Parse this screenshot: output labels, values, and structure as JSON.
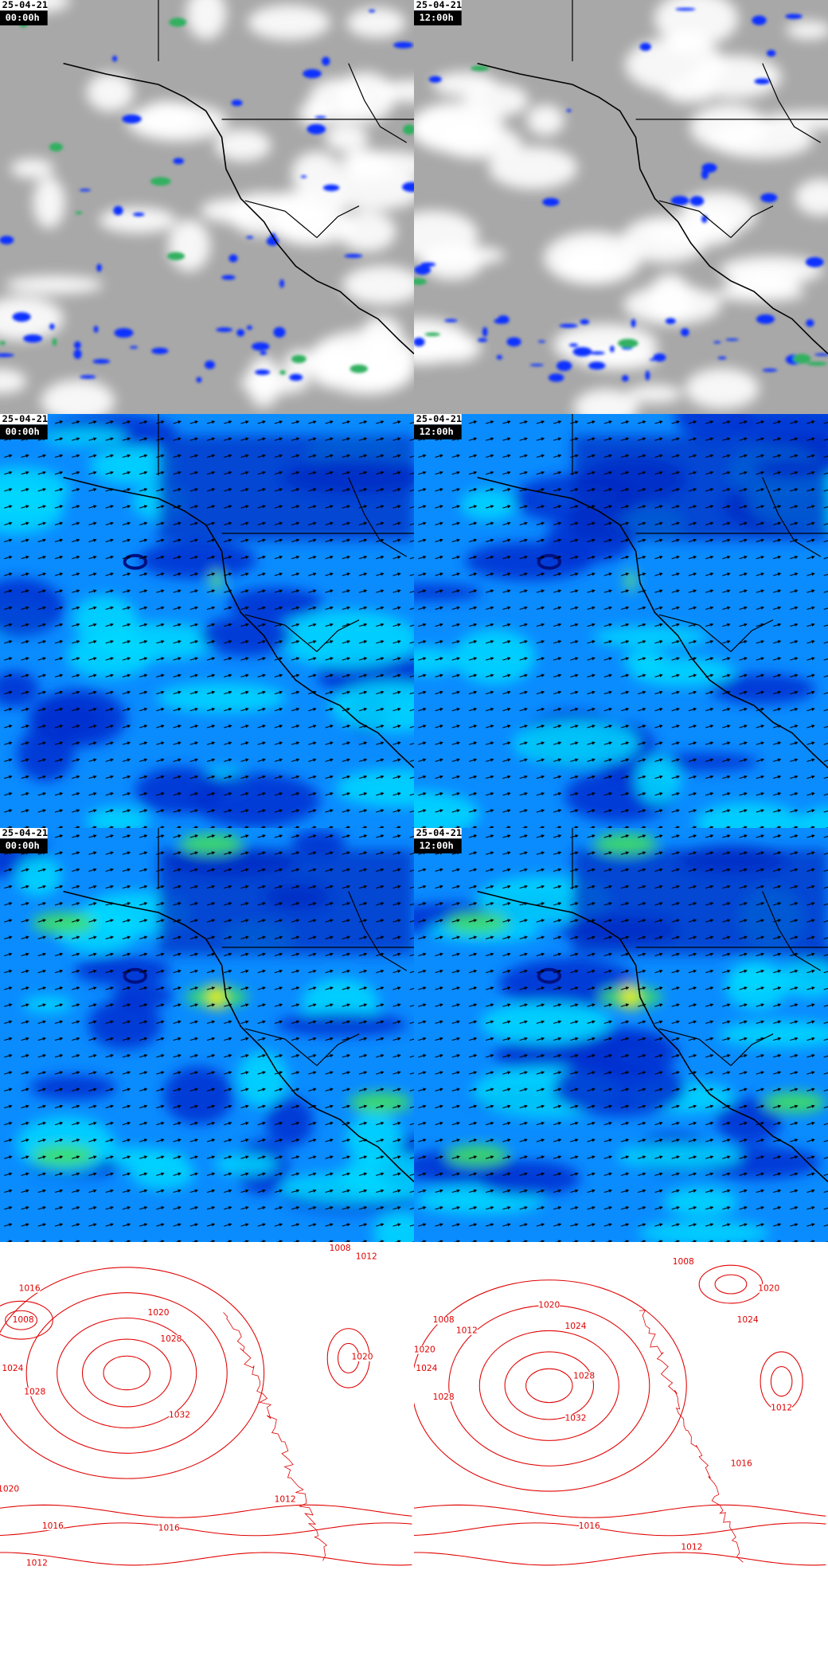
{
  "panels": [
    {
      "date": "25-04-21",
      "time": "00:00h"
    },
    {
      "date": "25-04-21",
      "time": "12:00h"
    },
    {
      "date": "25-04-21",
      "time": "00:00h"
    },
    {
      "date": "25-04-21",
      "time": "12:00h"
    },
    {
      "date": "25-04-21",
      "time": "00:00h"
    },
    {
      "date": "25-04-21",
      "time": "12:00h"
    }
  ],
  "isobars": [
    {
      "labels": [
        "1012",
        "1008",
        "1016",
        "1020",
        "1008",
        "1028",
        "1024",
        "1020",
        "1028",
        "1032",
        "1020",
        "1012",
        "1016",
        "1016",
        "1012"
      ]
    },
    {
      "labels": [
        "1008",
        "1020",
        "1020",
        "1008",
        "1024",
        "1012",
        "1024",
        "1020",
        "1028",
        "1024",
        "1028",
        "1012",
        "1032",
        "1016",
        "1016",
        "1012"
      ]
    }
  ]
}
